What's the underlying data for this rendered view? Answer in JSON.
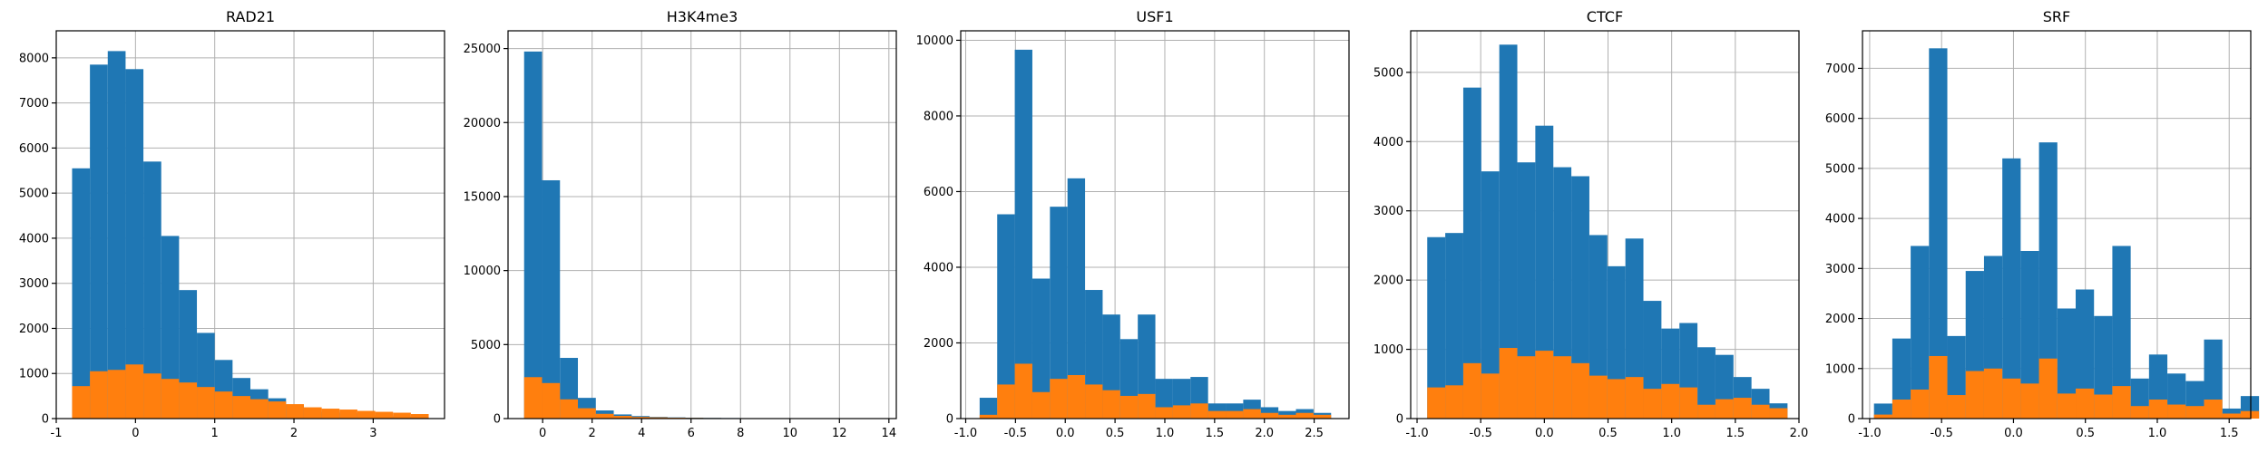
{
  "colors": {
    "series_total": "#1f77b4",
    "series_subset": "#ff7f0e"
  },
  "chart_data": [
    {
      "type": "bar",
      "title": "RAD21",
      "grid": true,
      "xlim": [
        -1.0,
        3.9
      ],
      "ylim": [
        0,
        8600
      ],
      "xticks": [
        -1,
        0,
        1,
        2,
        3
      ],
      "yticks": [
        0,
        1000,
        2000,
        3000,
        4000,
        5000,
        6000,
        7000,
        8000
      ],
      "bin_start": -0.8,
      "bin_width": 0.225,
      "series": [
        {
          "values": [
            5550,
            7850,
            8150,
            7750,
            5700,
            4050,
            2850,
            1900,
            1300,
            900,
            650,
            450,
            300,
            200,
            150,
            120,
            90,
            70,
            50,
            40
          ]
        },
        {
          "values": [
            720,
            1050,
            1080,
            1200,
            1000,
            880,
            800,
            700,
            600,
            500,
            430,
            380,
            320,
            250,
            220,
            200,
            170,
            150,
            130,
            100
          ]
        }
      ]
    },
    {
      "type": "bar",
      "title": "H3K4me3",
      "grid": true,
      "xlim": [
        -1.4,
        14.3
      ],
      "ylim": [
        0,
        26200
      ],
      "xticks": [
        0,
        2,
        4,
        6,
        8,
        10,
        12,
        14
      ],
      "yticks": [
        0,
        5000,
        10000,
        15000,
        20000,
        25000
      ],
      "bin_start": -0.75,
      "bin_width": 0.725,
      "series": [
        {
          "values": [
            24800,
            16100,
            4100,
            1400,
            550,
            280,
            170,
            110,
            80,
            60,
            45,
            35,
            25,
            20,
            15,
            12,
            10,
            8,
            6,
            5
          ]
        },
        {
          "values": [
            2800,
            2400,
            1300,
            700,
            320,
            180,
            110,
            80,
            60,
            45,
            35,
            25,
            20,
            15,
            12,
            10,
            8,
            6,
            5,
            4
          ]
        }
      ]
    },
    {
      "type": "bar",
      "title": "USF1",
      "grid": true,
      "xlim": [
        -1.05,
        2.85
      ],
      "ylim": [
        0,
        10250
      ],
      "xticks": [
        -1.0,
        -0.5,
        0.0,
        0.5,
        1.0,
        1.5,
        2.0,
        2.5
      ],
      "yticks": [
        0,
        2000,
        4000,
        6000,
        8000,
        10000
      ],
      "bin_start": -0.86,
      "bin_width": 0.1765,
      "series": [
        {
          "values": [
            550,
            5400,
            9750,
            3700,
            5600,
            6350,
            3400,
            2750,
            2100,
            2750,
            1050,
            1050,
            1100,
            400,
            400,
            500,
            300,
            200,
            250,
            150
          ]
        },
        {
          "values": [
            100,
            900,
            1450,
            700,
            1050,
            1150,
            900,
            750,
            600,
            650,
            300,
            350,
            400,
            200,
            200,
            250,
            150,
            100,
            150,
            100
          ]
        }
      ]
    },
    {
      "type": "bar",
      "title": "CTCF",
      "grid": true,
      "xlim": [
        -1.05,
        2.0
      ],
      "ylim": [
        0,
        5600
      ],
      "xticks": [
        -1.0,
        -0.5,
        0.0,
        0.5,
        1.0,
        1.5,
        2.0
      ],
      "yticks": [
        0,
        1000,
        2000,
        3000,
        4000,
        5000
      ],
      "bin_start": -0.92,
      "bin_width": 0.1415,
      "series": [
        {
          "values": [
            2620,
            2680,
            4780,
            3570,
            5400,
            3700,
            4230,
            3630,
            3500,
            2650,
            2200,
            2600,
            1700,
            1300,
            1380,
            1030,
            920,
            600,
            430,
            220
          ]
        },
        {
          "values": [
            450,
            480,
            800,
            650,
            1020,
            900,
            980,
            900,
            800,
            620,
            570,
            600,
            430,
            500,
            450,
            200,
            280,
            300,
            200,
            150
          ]
        }
      ]
    },
    {
      "type": "bar",
      "title": "SRF",
      "grid": true,
      "xlim": [
        -1.05,
        1.65
      ],
      "ylim": [
        0,
        7750
      ],
      "xticks": [
        -1.0,
        -0.5,
        0.0,
        0.5,
        1.0,
        1.5
      ],
      "yticks": [
        0,
        1000,
        2000,
        3000,
        4000,
        5000,
        6000,
        7000
      ],
      "bin_start": -0.97,
      "bin_width": 0.1275,
      "series": [
        {
          "values": [
            300,
            1600,
            3450,
            7400,
            1650,
            2950,
            3250,
            5200,
            3350,
            5520,
            2200,
            2580,
            2050,
            3450,
            800,
            1280,
            900,
            750,
            1580,
            200,
            450
          ]
        },
        {
          "values": [
            80,
            380,
            580,
            1250,
            470,
            950,
            1000,
            800,
            700,
            1200,
            500,
            600,
            480,
            650,
            250,
            380,
            280,
            250,
            380,
            100,
            150
          ]
        }
      ]
    }
  ]
}
